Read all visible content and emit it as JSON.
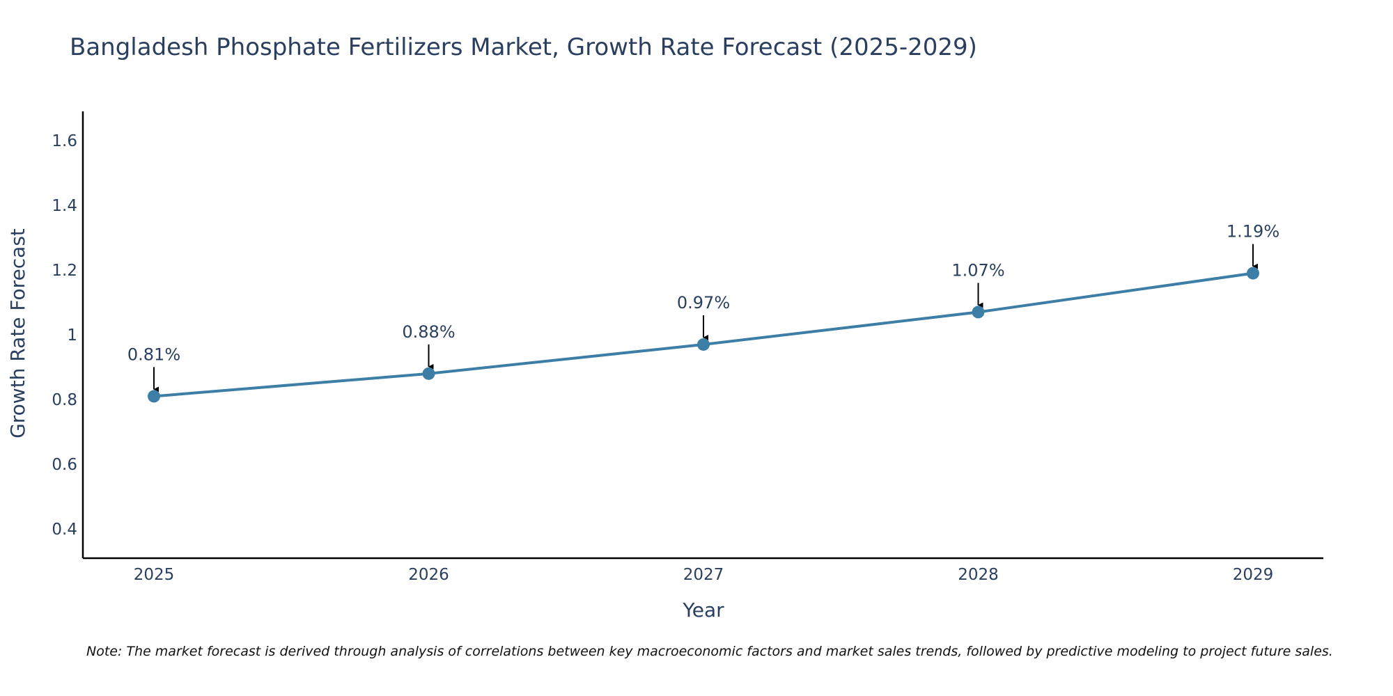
{
  "chart_data": {
    "type": "line",
    "title": "Bangladesh Phosphate Fertilizers Market, Growth Rate Forecast (2025-2029)",
    "xlabel": "Year",
    "ylabel": "Growth Rate Forecast",
    "categories": [
      "2025",
      "2026",
      "2027",
      "2028",
      "2029"
    ],
    "series": [
      {
        "name": "Growth Rate Forecast",
        "values": [
          0.81,
          0.88,
          0.97,
          1.07,
          1.19
        ],
        "labels": [
          "0.81%",
          "0.88%",
          "0.97%",
          "1.07%",
          "1.19%"
        ]
      }
    ],
    "ylim": [
      0.31,
      1.69
    ],
    "yticks": [
      0.4,
      0.6,
      0.8,
      1.0,
      1.2,
      1.4,
      1.6
    ],
    "ytick_labels": [
      "0.4",
      "0.6",
      "0.8",
      "1",
      "1.2",
      "1.4",
      "1.6"
    ],
    "grid": false,
    "legend": "none",
    "line_color": "#3d7ea6",
    "marker_color": "#3d7ea6",
    "annotation_arrow_color": "#000000",
    "note": "Note: The market forecast is derived through analysis of correlations between key macroeconomic factors and market sales trends, followed by predictive modeling to project future sales."
  }
}
